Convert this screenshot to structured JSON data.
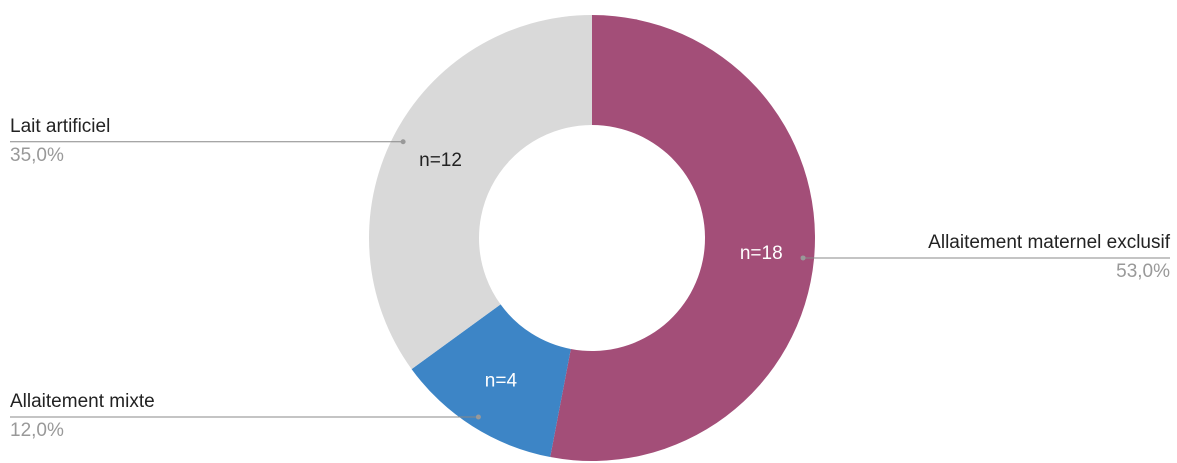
{
  "chart_data": {
    "type": "donut",
    "categories": [
      "Allaitement maternel exclusif",
      "Allaitement mixte",
      "Lait artificiel"
    ],
    "values": [
      53,
      12,
      35
    ],
    "value_labels": [
      "53,0%",
      "12,0%",
      "35,0%"
    ],
    "inner_labels": [
      "n=18",
      "n=4",
      "n=12"
    ],
    "colors": [
      "#a34e78",
      "#3d85c6",
      "#d9d9d9"
    ]
  }
}
